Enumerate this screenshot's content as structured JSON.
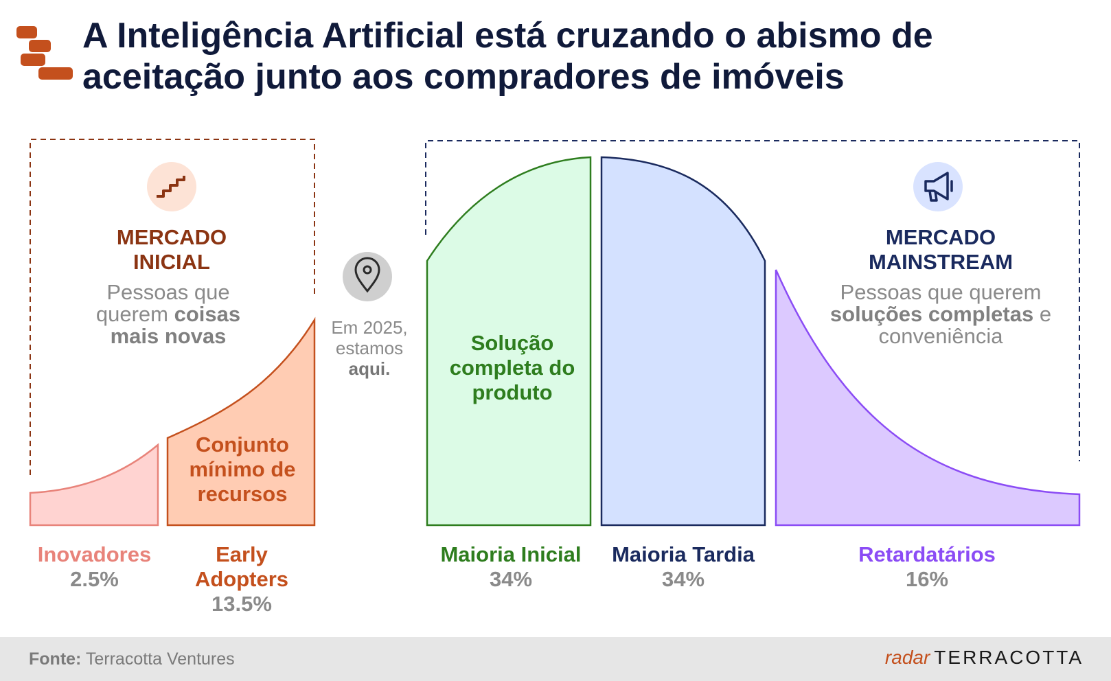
{
  "title": "A Inteligência Artificial está cruzando o abismo de aceitação junto aos compradores de imóveis",
  "chart_data": {
    "type": "area",
    "title": "A Inteligência Artificial está cruzando o abismo de aceitação junto aos compradores de imóveis",
    "segments": [
      {
        "name": "Inovadores",
        "value_label": "2.5%",
        "value": 2.5,
        "color": "#e8837a",
        "fill": "#ffd3d1"
      },
      {
        "name": "Early Adopters",
        "value_label": "13.5%",
        "value": 13.5,
        "color": "#c4501d",
        "fill": "#ffccb3"
      },
      {
        "name": "Maioria Inicial",
        "value_label": "34%",
        "value": 34,
        "color": "#2e7d1e",
        "fill": "#dcfbe6"
      },
      {
        "name": "Maioria Tardia",
        "value_label": "34%",
        "value": 34,
        "color": "#1a2a5e",
        "fill": "#d4e1ff"
      },
      {
        "name": "Retardatários",
        "value_label": "16%",
        "value": 16,
        "color": "#8b4cf5",
        "fill": "#dcc9ff"
      }
    ],
    "groups": [
      {
        "heading": "MERCADO INICIAL",
        "heading_color": "#8b3412",
        "border_color": "#8b3412",
        "description_plain": "Pessoas que querem ",
        "description_bold": "coisas mais novas",
        "description_tail": ""
      },
      {
        "heading": "MERCADO MAINSTREAM",
        "heading_color": "#1a2a5e",
        "border_color": "#1a2a5e",
        "description_plain": "Pessoas que querem ",
        "description_bold": "soluções completas",
        "description_tail": " e conveniência"
      }
    ],
    "band_labels": [
      {
        "text": "Conjunto mínimo de recursos",
        "segment": "Early Adopters"
      },
      {
        "text": "Solução completa do produto",
        "segment": "Maioria Inicial"
      }
    ],
    "marker": {
      "line1": "Em 2025, estamos",
      "bold": "aqui."
    }
  },
  "footer": {
    "source_label": "Fonte:",
    "source_value": "Terracotta Ventures",
    "brand_radar": "radar",
    "brand_name": "TERRACOTTA"
  },
  "icons": {
    "stairs": "stairs-icon",
    "pin": "location-pin-icon",
    "megaphone": "megaphone-icon"
  }
}
